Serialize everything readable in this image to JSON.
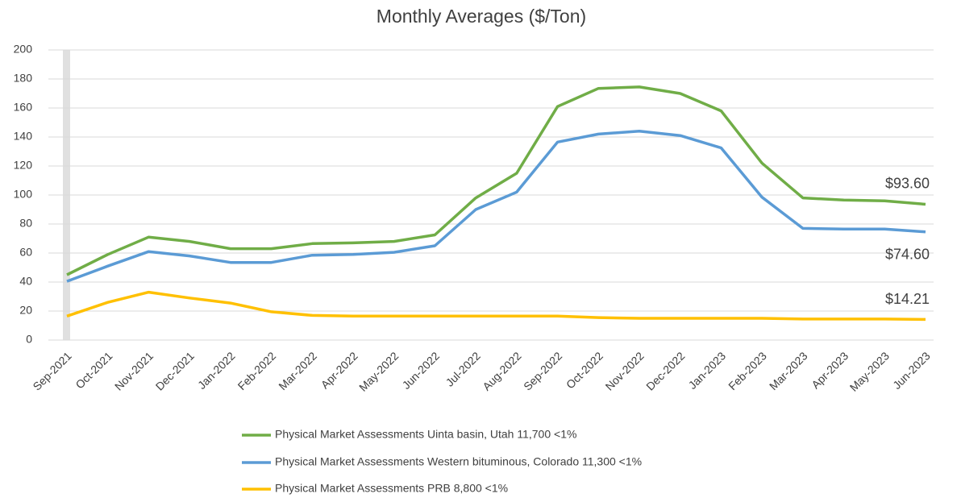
{
  "chart_data": {
    "type": "line",
    "title": "Monthly Averages ($/Ton)",
    "categories": [
      "Sep-2021",
      "Oct-2021",
      "Nov-2021",
      "Dec-2021",
      "Jan-2022",
      "Feb-2022",
      "Mar-2022",
      "Apr-2022",
      "May-2022",
      "Jun-2022",
      "Jul-2022",
      "Aug-2022",
      "Sep-2022",
      "Oct-2022",
      "Nov-2022",
      "Dec-2022",
      "Jan-2023",
      "Feb-2023",
      "Mar-2023",
      "Apr-2023",
      "May-2023",
      "Jun-2023"
    ],
    "series": [
      {
        "name": "Physical Market Assessments Uinta basin, Utah 11,700 <1%",
        "color": "#70ad47",
        "values": [
          45,
          59,
          71,
          68,
          63,
          63,
          66.5,
          67,
          68,
          72.5,
          98,
          115,
          161,
          173.5,
          174.5,
          170,
          158,
          122,
          98,
          96.5,
          96,
          93.6
        ],
        "value_labels": [
          null,
          null,
          null,
          null,
          null,
          null,
          null,
          null,
          null,
          null,
          null,
          null,
          null,
          null,
          null,
          null,
          null,
          null,
          null,
          null,
          null,
          "$93.60"
        ]
      },
      {
        "name": "Physical Market Assessments Western bituminous, Colorado 11,300 <1%",
        "color": "#5b9bd5",
        "values": [
          40.5,
          51,
          61,
          58,
          53.5,
          53.5,
          58.5,
          59,
          60.5,
          65,
          90,
          102,
          136.5,
          142,
          144,
          141,
          132.5,
          98.5,
          77,
          76.5,
          76.5,
          74.6
        ],
        "value_labels": [
          null,
          null,
          null,
          null,
          null,
          null,
          null,
          null,
          null,
          null,
          null,
          null,
          null,
          null,
          null,
          null,
          null,
          null,
          null,
          null,
          null,
          "$74.60"
        ]
      },
      {
        "name": "Physical Market Assessments PRB 8,800 <1%",
        "color": "#ffc000",
        "values": [
          16.5,
          26,
          33,
          29,
          25.5,
          19.5,
          17,
          16.5,
          16.5,
          16.5,
          16.5,
          16.5,
          16.5,
          15.5,
          15,
          15,
          15,
          15,
          14.5,
          14.5,
          14.5,
          14.21
        ],
        "value_labels": [
          null,
          null,
          null,
          null,
          null,
          null,
          null,
          null,
          null,
          null,
          null,
          null,
          null,
          null,
          null,
          null,
          null,
          null,
          null,
          null,
          null,
          "$14.21"
        ]
      }
    ],
    "ylim": [
      0,
      200
    ],
    "yticks": [
      0,
      20,
      40,
      60,
      80,
      100,
      120,
      140,
      160,
      180,
      200
    ],
    "grid": true
  }
}
